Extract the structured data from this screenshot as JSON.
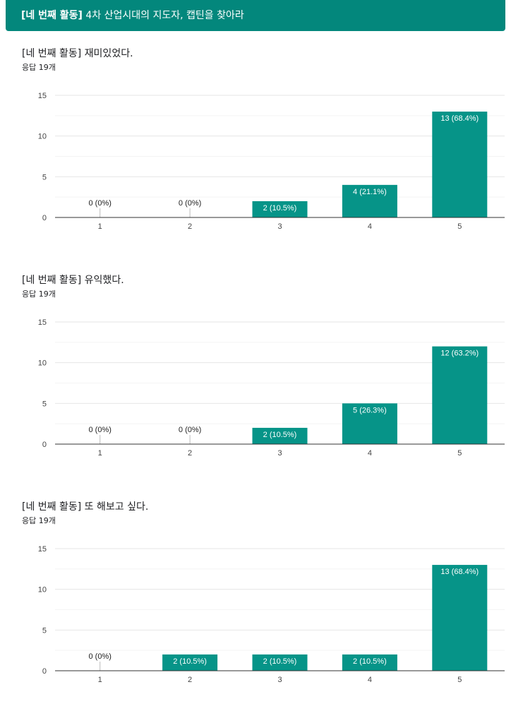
{
  "header": {
    "title_bold": "[네 번째 활동]",
    "title_rest": " 4차 산업시대의 지도자, 캡틴을 찾아라"
  },
  "colors": {
    "bar": "#069488",
    "header": "#03877c",
    "grid": "#eeeeee",
    "axis": "#333333"
  },
  "charts": [
    {
      "title": "[네 번째 활동] 재미있었다.",
      "subtitle": "응답 19개"
    },
    {
      "title": "[네 번째 활동] 유익했다.",
      "subtitle": "응답 19개"
    },
    {
      "title": "[네 번째 활동] 또 해보고 싶다.",
      "subtitle": "응답 19개"
    }
  ],
  "chart_data": [
    {
      "type": "bar",
      "title": "[네 번째 활동] 재미있었다.",
      "categories": [
        "1",
        "2",
        "3",
        "4",
        "5"
      ],
      "values": [
        0,
        0,
        2,
        4,
        13
      ],
      "labels": [
        "0 (0%)",
        "0 (0%)",
        "2 (10.5%)",
        "4 (21.1%)",
        "13 (68.4%)"
      ],
      "ylim": [
        0,
        15
      ],
      "yticks": [
        "0",
        "5",
        "10",
        "15"
      ],
      "grid": true
    },
    {
      "type": "bar",
      "title": "[네 번째 활동] 유익했다.",
      "categories": [
        "1",
        "2",
        "3",
        "4",
        "5"
      ],
      "values": [
        0,
        0,
        2,
        5,
        12
      ],
      "labels": [
        "0 (0%)",
        "0 (0%)",
        "2 (10.5%)",
        "5 (26.3%)",
        "12 (63.2%)"
      ],
      "ylim": [
        0,
        15
      ],
      "yticks": [
        "0",
        "5",
        "10",
        "15"
      ],
      "grid": true
    },
    {
      "type": "bar",
      "title": "[네 번째 활동] 또 해보고 싶다.",
      "categories": [
        "1",
        "2",
        "3",
        "4",
        "5"
      ],
      "values": [
        0,
        2,
        2,
        2,
        13
      ],
      "labels": [
        "0 (0%)",
        "2 (10.5%)",
        "2 (10.5%)",
        "2 (10.5%)",
        "13 (68.4%)"
      ],
      "ylim": [
        0,
        15
      ],
      "yticks": [
        "0",
        "5",
        "10",
        "15"
      ],
      "grid": true
    }
  ]
}
